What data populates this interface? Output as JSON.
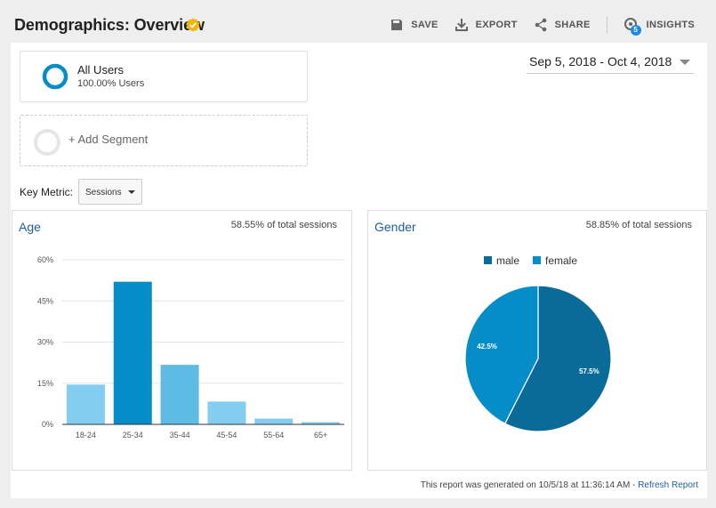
{
  "header": {
    "title": "Demographics: Overview",
    "actions": {
      "save": "SAVE",
      "export": "EXPORT",
      "share": "SHARE",
      "insights": "INSIGHTS",
      "insights_badge": "5"
    }
  },
  "segments": {
    "all_users": {
      "name": "All Users",
      "sub": "100.00% Users"
    },
    "add_segment": "+ Add Segment"
  },
  "date_range": "Sep 5, 2018 - Oct 4, 2018",
  "key_metric": {
    "label": "Key Metric:",
    "value": "Sessions"
  },
  "age_card": {
    "title": "Age",
    "subtitle": "58.55% of total sessions"
  },
  "gender_card": {
    "title": "Gender",
    "subtitle": "58.85% of total sessions"
  },
  "footer": {
    "text": "This report was generated on 10/5/18 at 11:36:14 AM - ",
    "link": "Refresh Report"
  },
  "colors": {
    "accent": "#058dc7",
    "dark": "#0a6b98",
    "light": "#82cdf0",
    "mid": "#5dbbe4",
    "link": "#1f5f9a",
    "verified": "#f5b400"
  },
  "chart_data": [
    {
      "type": "bar",
      "title": "Age",
      "categories": [
        "18-24",
        "25-34",
        "35-44",
        "45-54",
        "55-64",
        "65+"
      ],
      "values": [
        14.5,
        52,
        21.7,
        8.3,
        2.1,
        0.8
      ],
      "yticks": [
        "0%",
        "15%",
        "30%",
        "45%",
        "60%"
      ],
      "ylim": [
        0,
        60
      ],
      "grid": true
    },
    {
      "type": "pie",
      "title": "Gender",
      "series": [
        {
          "name": "male",
          "value": 57.5,
          "label": "57.5%"
        },
        {
          "name": "female",
          "value": 42.5,
          "label": "42.5%"
        }
      ],
      "legend": "top"
    }
  ]
}
